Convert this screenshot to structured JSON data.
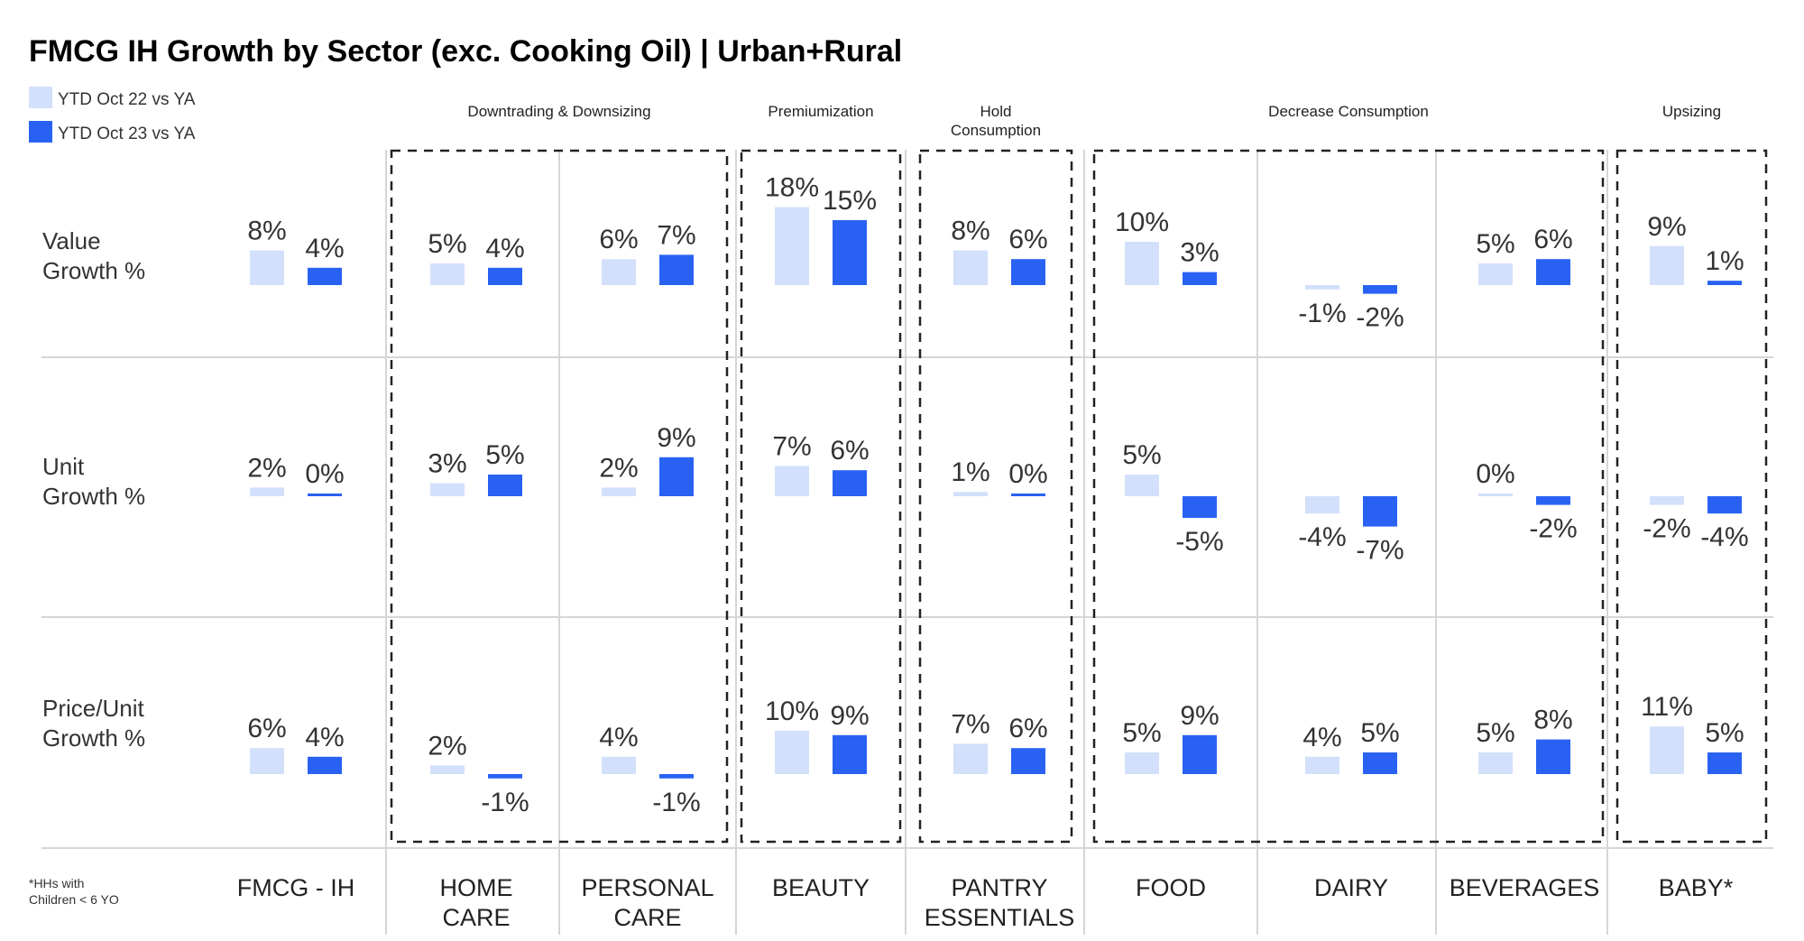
{
  "chart_data": {
    "type": "bar",
    "title": "FMCG IH Growth by Sector (exc. Cooking Oil) | Urban+Rural",
    "legend": [
      {
        "name": "YTD Oct 22 vs YA",
        "color": "#d2e0fb"
      },
      {
        "name": "YTD Oct 23 vs YA",
        "color": "#2962f3"
      }
    ],
    "legend_position": "top-left",
    "metrics": [
      [
        "Value",
        "Growth %"
      ],
      [
        "Unit",
        "Growth %"
      ],
      [
        "Price/Unit",
        "Growth %"
      ]
    ],
    "categories": [
      [
        "FMCG - IH"
      ],
      [
        "HOME",
        "CARE"
      ],
      [
        "PERSONAL",
        "CARE"
      ],
      [
        "BEAUTY"
      ],
      [
        "PANTRY",
        "ESSENTIALS"
      ],
      [
        "FOOD"
      ],
      [
        "DAIRY"
      ],
      [
        "BEVERAGES"
      ],
      [
        "BABY*"
      ]
    ],
    "groups": [
      {
        "label": [
          "Downtrading & Downsizing"
        ],
        "categories": [
          1,
          2
        ]
      },
      {
        "label": [
          "Premiumization"
        ],
        "categories": [
          3
        ]
      },
      {
        "label": [
          "Hold",
          "Consumption"
        ],
        "categories": [
          4
        ]
      },
      {
        "label": [
          "Decrease Consumption"
        ],
        "categories": [
          5,
          6,
          7
        ]
      },
      {
        "label": [
          "Upsizing"
        ],
        "categories": [
          8
        ]
      }
    ],
    "series": [
      {
        "name": "YTD Oct 22 vs YA",
        "values": {
          "value_growth": [
            8,
            5,
            6,
            18,
            8,
            10,
            -1,
            5,
            9
          ],
          "unit_growth": [
            2,
            3,
            2,
            7,
            1,
            5,
            -4,
            0,
            -2
          ],
          "price_unit_growth": [
            6,
            2,
            4,
            10,
            7,
            5,
            4,
            5,
            11
          ]
        }
      },
      {
        "name": "YTD Oct 23 vs YA",
        "values": {
          "value_growth": [
            4,
            4,
            7,
            15,
            6,
            3,
            -2,
            6,
            1
          ],
          "unit_growth": [
            0,
            5,
            9,
            6,
            0,
            -5,
            -7,
            -2,
            -4
          ],
          "price_unit_growth": [
            4,
            -1,
            -1,
            9,
            6,
            9,
            5,
            8,
            5
          ]
        }
      }
    ],
    "footnote": [
      "*HHs with",
      "Children < 6 YO"
    ]
  }
}
